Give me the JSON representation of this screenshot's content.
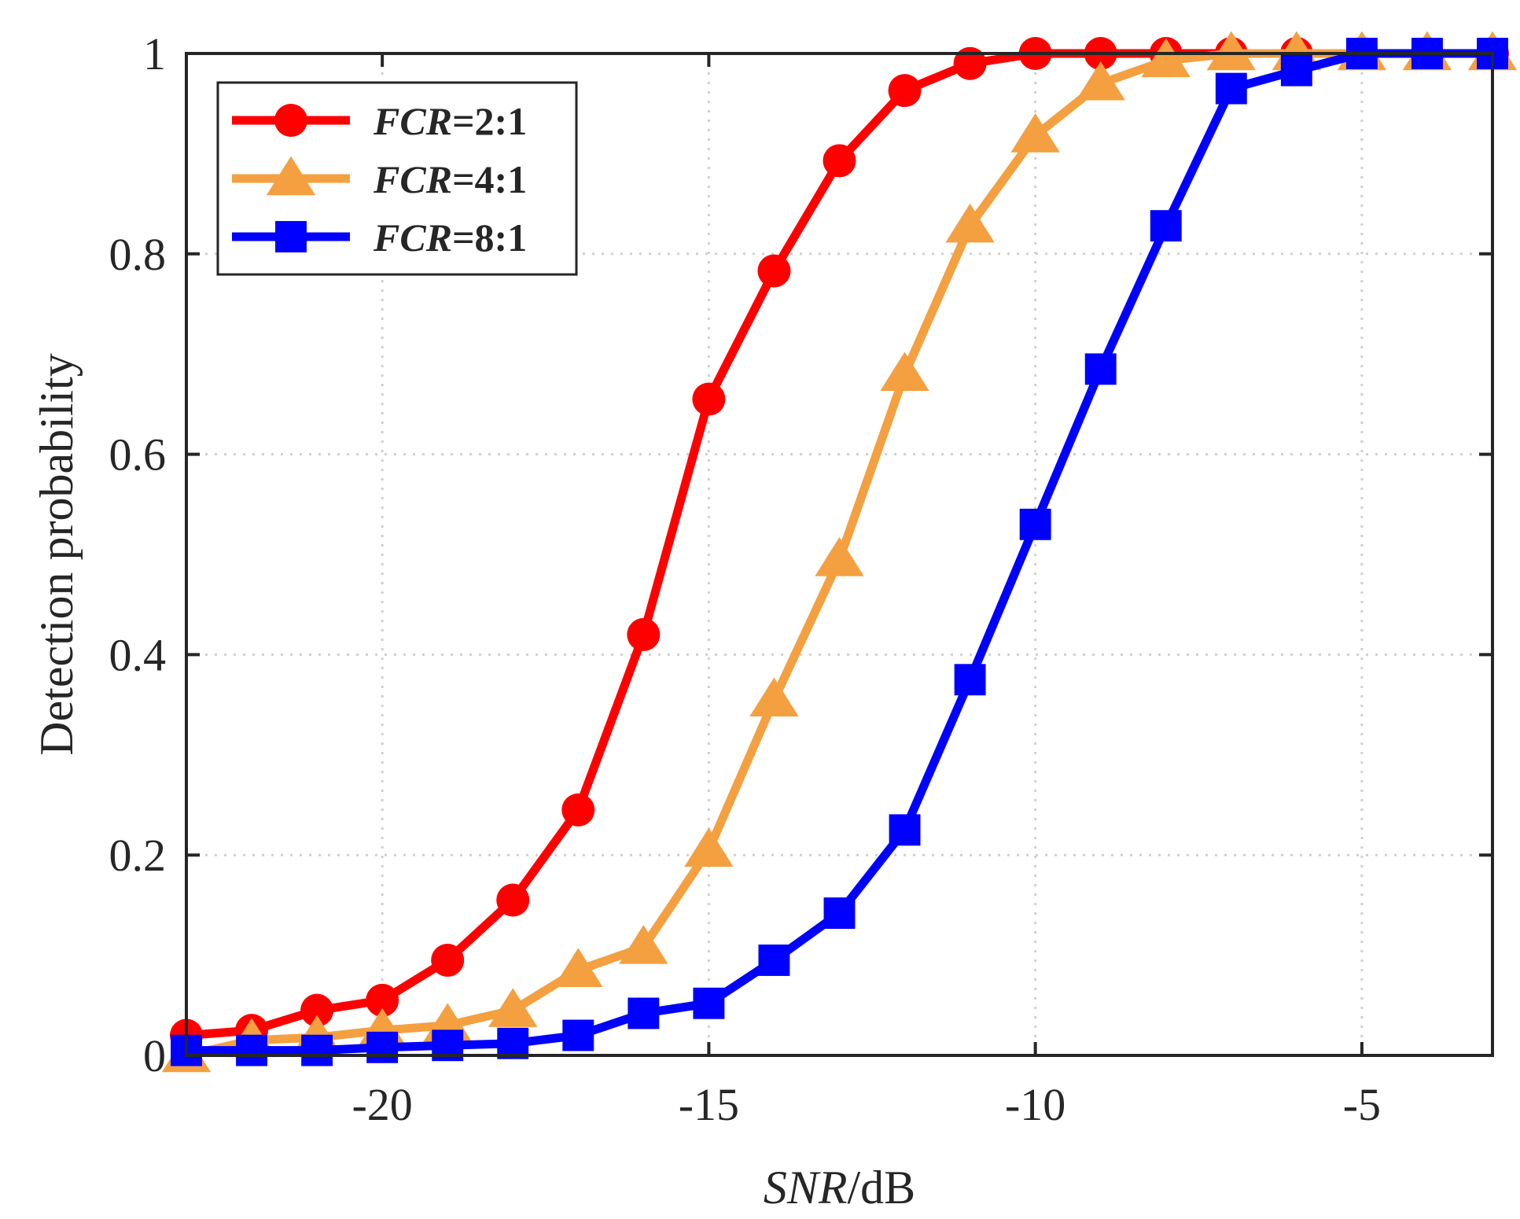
{
  "chart_data": {
    "type": "line",
    "xlabel": {
      "italic": "SNR",
      "plain": "/dB"
    },
    "ylabel": "Detection probability",
    "xlim": [
      -23,
      -3
    ],
    "ylim": [
      0,
      1
    ],
    "xticks": [
      -20,
      -15,
      -10,
      -5
    ],
    "xtick_labels": [
      "-20",
      "-15",
      "-10",
      "-5"
    ],
    "yticks": [
      0,
      0.2,
      0.4,
      0.6,
      0.8,
      1
    ],
    "ytick_labels": [
      "0",
      "0.2",
      "0.4",
      "0.6",
      "0.8",
      "1"
    ],
    "grid": true,
    "legend_position": "top-left",
    "x": [
      -23,
      -22,
      -21,
      -20,
      -19,
      -18,
      -17,
      -16,
      -15,
      -14,
      -13,
      -12,
      -11,
      -10,
      -9,
      -8,
      -7,
      -6,
      -5,
      -4,
      -3
    ],
    "series": [
      {
        "name": "FCR=2:1",
        "name_italic": "FCR",
        "name_rest": "=2:1",
        "color": "#ff0000",
        "marker": "circle",
        "values": [
          0.02,
          0.025,
          0.045,
          0.055,
          0.095,
          0.155,
          0.245,
          0.42,
          0.655,
          0.783,
          0.893,
          0.963,
          0.99,
          1.0,
          1.0,
          1.0,
          1.0,
          1.0,
          1.0,
          1.0,
          1.0
        ]
      },
      {
        "name": "FCR=4:1",
        "name_italic": "FCR",
        "name_rest": "=4:1",
        "color": "#f4a040",
        "marker": "triangle",
        "values": [
          0.0,
          0.015,
          0.018,
          0.025,
          0.03,
          0.045,
          0.085,
          0.108,
          0.205,
          0.355,
          0.495,
          0.68,
          0.828,
          0.918,
          0.97,
          0.993,
          1.0,
          1.0,
          1.0,
          1.0,
          1.0
        ]
      },
      {
        "name": "FCR=8:1",
        "name_italic": "FCR",
        "name_rest": "=8:1",
        "color": "#0000ff",
        "marker": "square",
        "values": [
          0.005,
          0.005,
          0.005,
          0.008,
          0.01,
          0.012,
          0.02,
          0.042,
          0.052,
          0.095,
          0.142,
          0.225,
          0.375,
          0.53,
          0.685,
          0.828,
          0.965,
          0.983,
          1.0,
          1.0,
          1.0
        ]
      }
    ]
  }
}
